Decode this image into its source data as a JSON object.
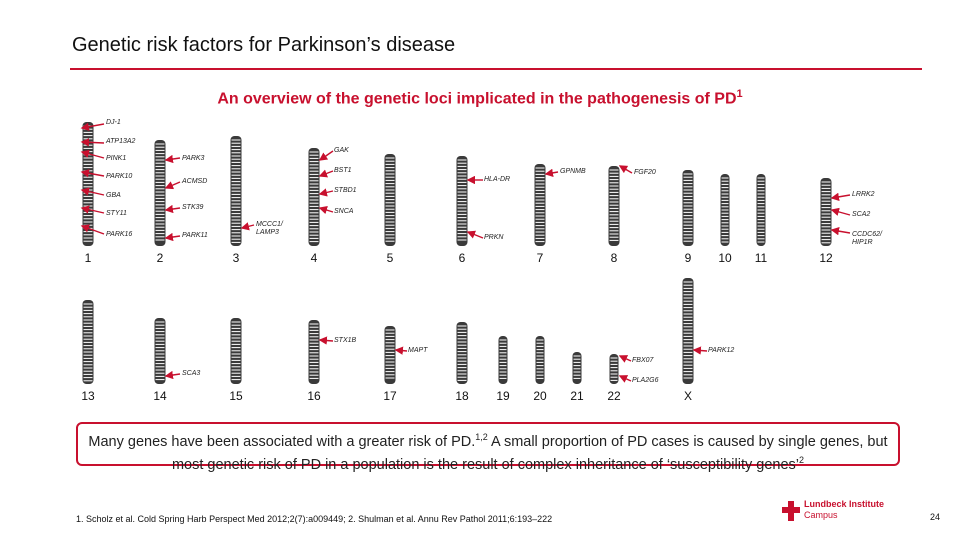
{
  "slide": {
    "title": "Genetic risk factors for Parkinson’s disease",
    "subtitle": "An overview of the genetic loci implicated in the pathogenesis of PD",
    "subtitle_ref": "1",
    "summary_part1": "Many genes have been associated with a greater risk of PD.",
    "summary_ref1": "1,2",
    "summary_part2": " A small proportion of PD cases is caused by single genes, but most genetic risk of PD in a population is the result of complex inheritance of ‘susceptibility genes’",
    "summary_ref2": "2",
    "references": "1. Scholz et al. Cold Spring Harb Perspect Med 2012;2(7):a009449; 2. Shulman et al. Annu Rev Pathol 2011;6:193–222",
    "logo_name": "Lundbeck Institute",
    "logo_sub": "Campus",
    "page_number": "24"
  },
  "colors": {
    "accent": "#c8102e",
    "chromosome": "#3a3a3a",
    "band": "#ffffff"
  },
  "chromosomes": [
    {
      "label": "1"
    },
    {
      "label": "2"
    },
    {
      "label": "3"
    },
    {
      "label": "4"
    },
    {
      "label": "5"
    },
    {
      "label": "6"
    },
    {
      "label": "7"
    },
    {
      "label": "8"
    },
    {
      "label": "9"
    },
    {
      "label": "10"
    },
    {
      "label": "11"
    },
    {
      "label": "12"
    },
    {
      "label": "13"
    },
    {
      "label": "14"
    },
    {
      "label": "15"
    },
    {
      "label": "16"
    },
    {
      "label": "17"
    },
    {
      "label": "18"
    },
    {
      "label": "19"
    },
    {
      "label": "20"
    },
    {
      "label": "21"
    },
    {
      "label": "22"
    },
    {
      "label": "X"
    }
  ],
  "genes": [
    {
      "label": "DJ-1"
    },
    {
      "label": "ATP13A2"
    },
    {
      "label": "PINK1"
    },
    {
      "label": "PARK10"
    },
    {
      "label": "GBA"
    },
    {
      "label": "STY11"
    },
    {
      "label": "PARK16"
    },
    {
      "label": "PARK3"
    },
    {
      "label": "ACMSD"
    },
    {
      "label": "STK39"
    },
    {
      "label": "PARK11"
    },
    {
      "label": "MCCC1/ LAMP3"
    },
    {
      "label": "GAK"
    },
    {
      "label": "BST1"
    },
    {
      "label": "STBD1"
    },
    {
      "label": "SNCA"
    },
    {
      "label": "HLA-DR"
    },
    {
      "label": "GPNMB"
    },
    {
      "label": "FGF20"
    },
    {
      "label": "PRKN"
    },
    {
      "label": "LRRK2"
    },
    {
      "label": "SCA2"
    },
    {
      "label": "CCDC62/ HIP1R"
    },
    {
      "label": "STX1B"
    },
    {
      "label": "MAPT"
    },
    {
      "label": "SCA3"
    },
    {
      "label": "FBX07"
    },
    {
      "label": "PARK12"
    },
    {
      "label": "PLA2G6"
    }
  ]
}
